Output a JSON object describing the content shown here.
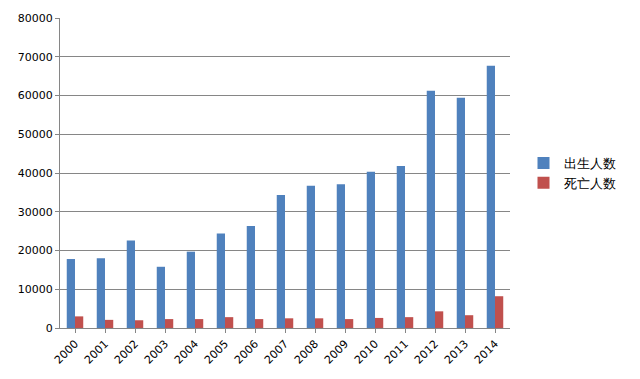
{
  "chart_data": {
    "type": "bar",
    "categories": [
      "2000",
      "2001",
      "2002",
      "2003",
      "2004",
      "2005",
      "2006",
      "2007",
      "2008",
      "2009",
      "2010",
      "2011",
      "2012",
      "2013",
      "2014"
    ],
    "series": [
      {
        "name": "出生人数",
        "color": "#4f81bd",
        "values": [
          17800,
          18000,
          22600,
          15800,
          19700,
          24400,
          26300,
          34300,
          36700,
          37100,
          40300,
          41800,
          61200,
          59400,
          67700
        ]
      },
      {
        "name": "死亡人数",
        "color": "#c0504d",
        "values": [
          3000,
          2100,
          2000,
          2300,
          2300,
          2800,
          2300,
          2500,
          2500,
          2300,
          2600,
          2800,
          4300,
          3300,
          8200
        ]
      }
    ],
    "ylim": [
      0,
      80000
    ],
    "yticks": [
      0,
      10000,
      20000,
      30000,
      40000,
      50000,
      60000,
      70000,
      80000
    ],
    "grid": true,
    "legend": "right"
  }
}
